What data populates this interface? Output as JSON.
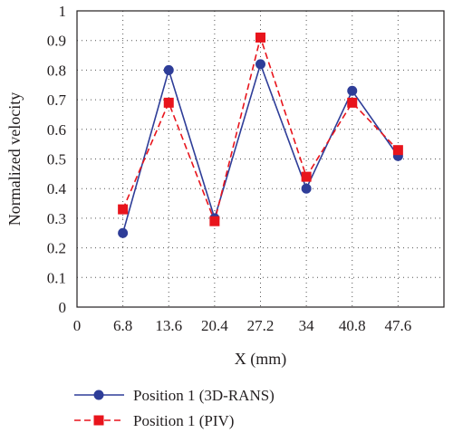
{
  "chart_data": {
    "type": "line",
    "xlabel": "X (mm)",
    "ylabel": "Normalized velocity",
    "xlim": [
      0,
      54.4
    ],
    "ylim": [
      0,
      1
    ],
    "x_ticks": [
      0,
      6.8,
      13.6,
      20.4,
      27.2,
      34,
      40.8,
      47.6
    ],
    "x_tick_labels": [
      "0",
      "6.8",
      "13.6",
      "20.4",
      "27.2",
      "34",
      "40.8",
      "47.6"
    ],
    "y_ticks": [
      0,
      0.1,
      0.2,
      0.3,
      0.4,
      0.5,
      0.6,
      0.7,
      0.8,
      0.9,
      1
    ],
    "y_tick_labels": [
      "0",
      "0.1",
      "0.2",
      "0.3",
      "0.4",
      "0.5",
      "0.6",
      "0.7",
      "0.8",
      "0.9",
      "1"
    ],
    "grid": true,
    "legend_position": "bottom",
    "x": [
      6.8,
      13.6,
      20.4,
      27.2,
      34,
      40.8,
      47.6
    ],
    "series": [
      {
        "name": "Position 1 (3D-RANS)",
        "values": [
          0.25,
          0.8,
          0.3,
          0.82,
          0.4,
          0.73,
          0.51
        ],
        "color": "#2e3d98",
        "line_style": "solid",
        "marker": "circle"
      },
      {
        "name": "Position 1 (PIV)",
        "values": [
          0.33,
          0.69,
          0.29,
          0.91,
          0.44,
          0.69,
          0.53
        ],
        "color": "#e8141c",
        "line_style": "dashed",
        "marker": "square"
      }
    ]
  }
}
